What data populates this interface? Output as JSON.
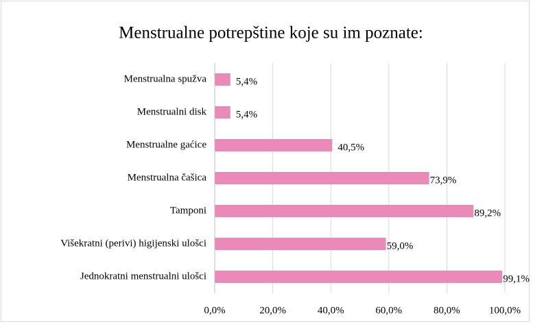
{
  "chart_data": {
    "type": "bar",
    "orientation": "horizontal",
    "title": "Menstrualne potrepštine koje su im poznate:",
    "categories": [
      "Menstrualna spužva",
      "Menstrualni disk",
      "Menstrualne gaćice",
      "Menstrualna čašica",
      "Tamponi",
      "Višekratni (perivi) higijenski ulošci",
      "Jednokratni menstrualni ulošci"
    ],
    "values": [
      5.4,
      5.4,
      40.5,
      73.9,
      89.2,
      59.0,
      99.1
    ],
    "value_labels": [
      "5,4%",
      "5,4%",
      "40,5%",
      "73,9%",
      "89,2%",
      "59,0%",
      "99,1%"
    ],
    "color": "#ea8ab8",
    "xlim": [
      0,
      100
    ],
    "xticks": [
      {
        "value": 0,
        "label": "0,0%"
      },
      {
        "value": 20,
        "label": "20,0%"
      },
      {
        "value": 40,
        "label": "40,0%"
      },
      {
        "value": 60,
        "label": "60,0%"
      },
      {
        "value": 80,
        "label": "80,0%"
      },
      {
        "value": 100,
        "label": "100,0%"
      }
    ],
    "grid": true
  }
}
